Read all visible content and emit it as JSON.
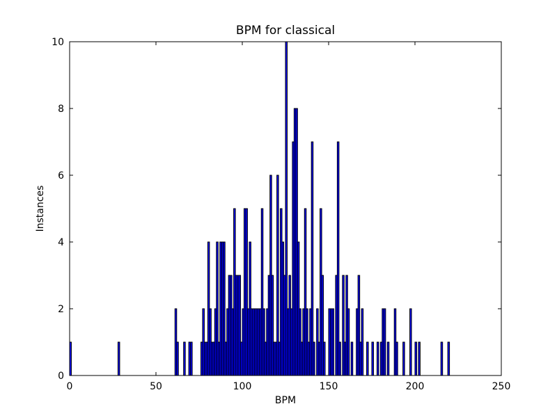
{
  "chart_data": {
    "type": "bar",
    "title": "BPM for classical",
    "xlabel": "BPM",
    "ylabel": "Instances",
    "xlim": [
      0,
      250
    ],
    "ylim": [
      0,
      10
    ],
    "xticks": [
      "0",
      "50",
      "100",
      "150",
      "200",
      "250"
    ],
    "yticks": [
      "0",
      "2",
      "4",
      "6",
      "8",
      "10"
    ],
    "grid": false,
    "bar_color": "#0000ff",
    "edge_color": "#000000",
    "bin_width": 1,
    "x": [
      0,
      28,
      61,
      62,
      66,
      69,
      70,
      76,
      77,
      78,
      79,
      80,
      81,
      82,
      83,
      84,
      85,
      86,
      87,
      88,
      89,
      90,
      91,
      92,
      93,
      94,
      95,
      96,
      97,
      98,
      99,
      100,
      101,
      102,
      103,
      104,
      105,
      106,
      107,
      108,
      109,
      110,
      111,
      112,
      113,
      114,
      115,
      116,
      117,
      118,
      119,
      120,
      121,
      122,
      123,
      124,
      125,
      126,
      127,
      128,
      129,
      130,
      131,
      132,
      133,
      134,
      135,
      136,
      137,
      138,
      139,
      140,
      141,
      143,
      144,
      145,
      146,
      147,
      150,
      151,
      152,
      154,
      155,
      156,
      158,
      159,
      160,
      161,
      163,
      166,
      167,
      168,
      169,
      172,
      175,
      178,
      180,
      181,
      182,
      184,
      188,
      189,
      193,
      197,
      200,
      202,
      215,
      219
    ],
    "values": [
      1,
      1,
      2,
      1,
      1,
      1,
      1,
      1,
      2,
      1,
      1,
      4,
      2,
      1,
      1,
      2,
      4,
      1,
      4,
      4,
      4,
      1,
      2,
      3,
      3,
      2,
      5,
      3,
      3,
      3,
      1,
      2,
      5,
      5,
      2,
      4,
      2,
      2,
      2,
      2,
      2,
      2,
      5,
      2,
      1,
      2,
      3,
      6,
      3,
      1,
      1,
      6,
      1,
      5,
      4,
      3,
      10,
      2,
      3,
      2,
      7,
      8,
      8,
      4,
      2,
      1,
      2,
      5,
      2,
      1,
      2,
      7,
      1,
      2,
      1,
      5,
      3,
      1,
      2,
      2,
      2,
      3,
      7,
      1,
      3,
      1,
      3,
      2,
      1,
      2,
      3,
      1,
      2,
      1,
      1,
      1,
      1,
      2,
      2,
      1,
      2,
      1,
      1,
      2,
      1,
      1,
      1,
      1
    ]
  }
}
